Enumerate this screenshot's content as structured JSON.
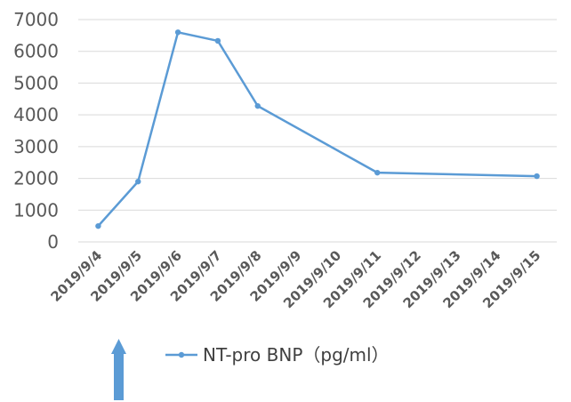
{
  "chart_data": {
    "type": "line",
    "x": [
      "2019/9/4",
      "2019/9/5",
      "2019/9/6",
      "2019/9/7",
      "2019/9/8",
      "2019/9/9",
      "2019/9/10",
      "2019/9/11",
      "2019/9/12",
      "2019/9/13",
      "2019/9/14",
      "2019/9/15"
    ],
    "series": [
      {
        "name": "NT-pro BNP（pg/ml）",
        "color": "#5b9bd5",
        "values": [
          500,
          1900,
          6600,
          6330,
          4280,
          null,
          null,
          2180,
          null,
          null,
          null,
          2070
        ]
      }
    ],
    "title": "",
    "xlabel": "",
    "ylabel": "",
    "ylim": [
      0,
      7000
    ],
    "yticks": [
      0,
      1000,
      2000,
      3000,
      4000,
      5000,
      6000,
      7000
    ],
    "grid": true,
    "legend_position": "bottom",
    "gridline_color": "#d9d9d9",
    "annotation_icon": "up-arrow",
    "annotation_category": "2019/9/5"
  }
}
